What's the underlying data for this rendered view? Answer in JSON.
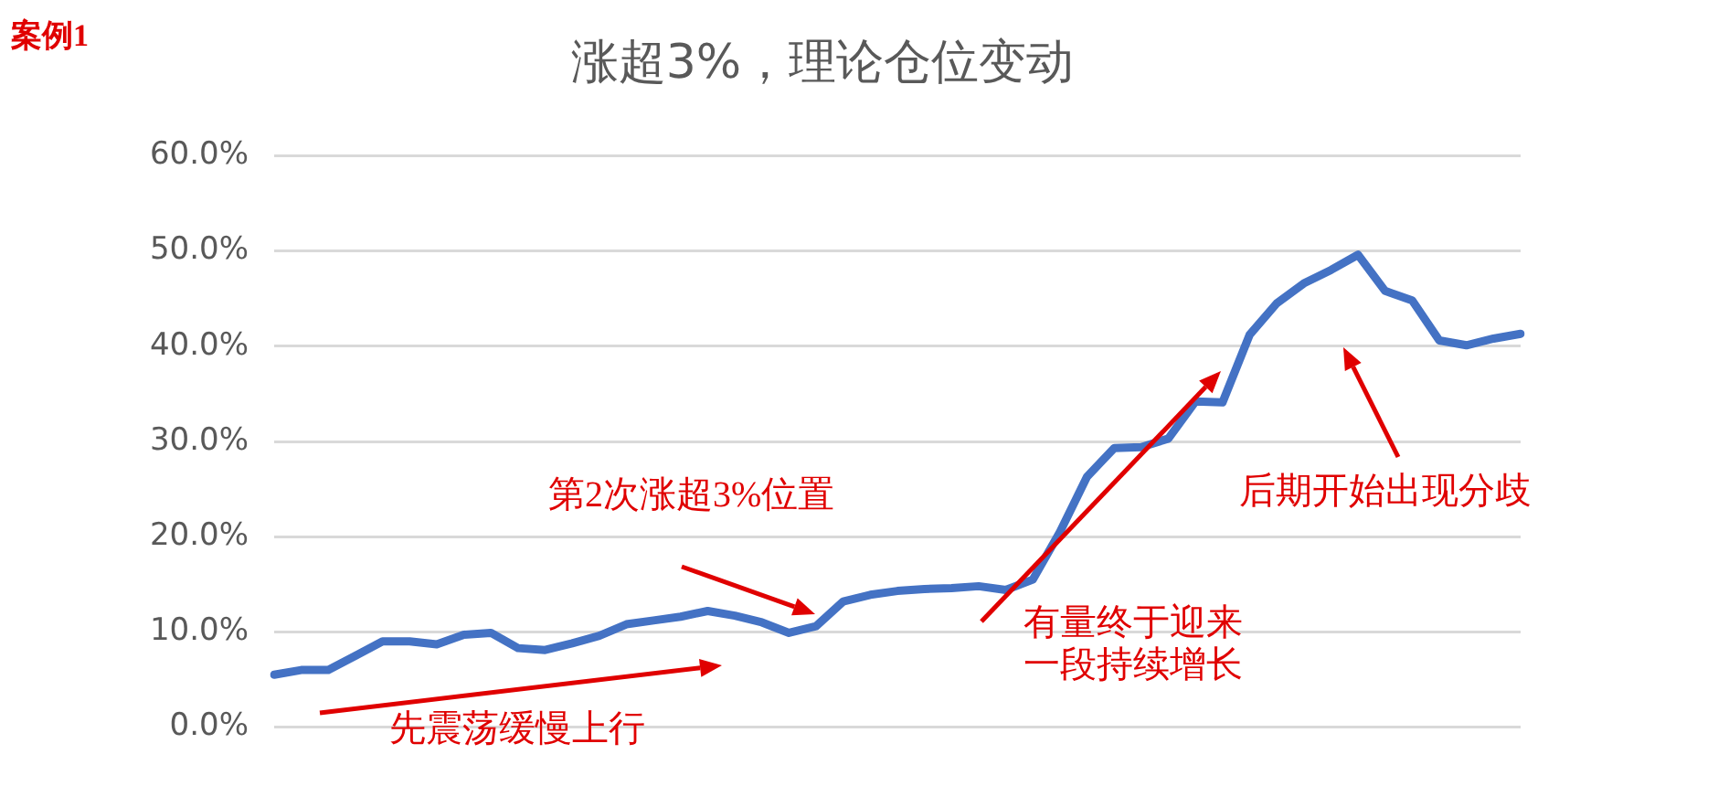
{
  "chart_data": {
    "type": "line",
    "title": "涨超3%，理论仓位变动",
    "categories": [
      null,
      null,
      null,
      null,
      null,
      null,
      null,
      null,
      null,
      null,
      null,
      null,
      null,
      null,
      null,
      null,
      null,
      null,
      null,
      null,
      null,
      null,
      null,
      null,
      null,
      null,
      null,
      null,
      null,
      null,
      null,
      null,
      null,
      null,
      null,
      null,
      null,
      null,
      null,
      null,
      null,
      null,
      null,
      null,
      null,
      null,
      null
    ],
    "series": [
      {
        "color": "#4472c4",
        "values": [
          5.5,
          6.0,
          6.0,
          7.5,
          9.0,
          9.0,
          8.7,
          9.7,
          9.9,
          8.3,
          8.1,
          8.8,
          9.6,
          10.8,
          11.2,
          11.6,
          12.2,
          11.7,
          11.0,
          9.9,
          10.6,
          13.2,
          13.9,
          14.3,
          14.5,
          14.6,
          14.8,
          14.4,
          15.5,
          20.5,
          26.3,
          29.3,
          29.4,
          30.3,
          34.2,
          34.1,
          41.2,
          44.5,
          46.6,
          48.0,
          49.6,
          45.8,
          44.8,
          40.6,
          40.1,
          40.8,
          41.3
        ]
      }
    ],
    "ylim": [
      0,
      60
    ],
    "yticks": [
      {
        "value": 0,
        "label": "0.0%"
      },
      {
        "value": 10,
        "label": "10.0%"
      },
      {
        "value": 20,
        "label": "20.0%"
      },
      {
        "value": 30,
        "label": "30.0%"
      },
      {
        "value": 40,
        "label": "40.0%"
      },
      {
        "value": 50,
        "label": "50.0%"
      },
      {
        "value": 60,
        "label": "60.0%"
      }
    ],
    "grid": "y",
    "tick_labels": "y",
    "marker": "none",
    "line_style": "solid",
    "annotations": [
      "案例1",
      "先震荡缓慢上行",
      "第2次涨超3%位置",
      "有量终于迎来",
      "一段持续增长",
      "后期开始出现分歧"
    ]
  }
}
